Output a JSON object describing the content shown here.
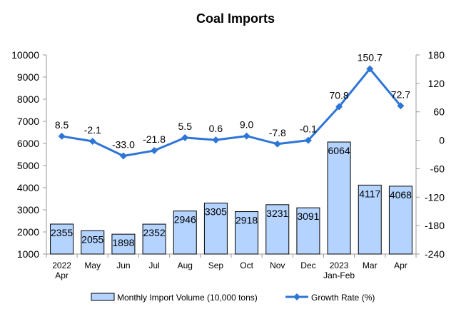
{
  "chart_data": {
    "type": "bar",
    "title": "Coal Imports",
    "categories": [
      [
        "2022",
        "Apr"
      ],
      [
        "May"
      ],
      [
        "Jun"
      ],
      [
        "Jul"
      ],
      [
        "Aug"
      ],
      [
        "Sep"
      ],
      [
        "Oct"
      ],
      [
        "Nov"
      ],
      [
        "Dec"
      ],
      [
        "2023",
        "Jan-Feb"
      ],
      [
        "Mar"
      ],
      [
        "Apr"
      ]
    ],
    "series": [
      {
        "name": "Monthly Import Volume (10,000 tons)",
        "type": "bar",
        "axis": "left",
        "color": "#b4d4ff",
        "values": [
          2355,
          2055,
          1898,
          2352,
          2946,
          3305,
          2918,
          3231,
          3091,
          6064,
          4117,
          4068
        ]
      },
      {
        "name": "Growth Rate (%)",
        "type": "line",
        "axis": "right",
        "color": "#2e75d6",
        "values": [
          8.5,
          -2.1,
          -33.0,
          -21.8,
          5.5,
          0.6,
          9.0,
          -7.8,
          -0.1,
          70.8,
          150.7,
          72.7
        ],
        "labels": [
          "8.5",
          "-2.1",
          "-33.0",
          "-21.8",
          "5.5",
          "0.6",
          "9.0",
          "-7.8",
          "-0.1",
          "70.8",
          "150.7",
          "72.7"
        ]
      }
    ],
    "y_left": {
      "min": 1000,
      "max": 10000,
      "ticks": [
        1000,
        2000,
        3000,
        4000,
        5000,
        6000,
        7000,
        8000,
        9000,
        10000
      ]
    },
    "y_right": {
      "min": -240,
      "max": 180,
      "ticks": [
        -240,
        -180,
        -120,
        -60,
        0,
        60,
        120,
        180
      ]
    },
    "grid": false,
    "legend_position": "bottom"
  }
}
